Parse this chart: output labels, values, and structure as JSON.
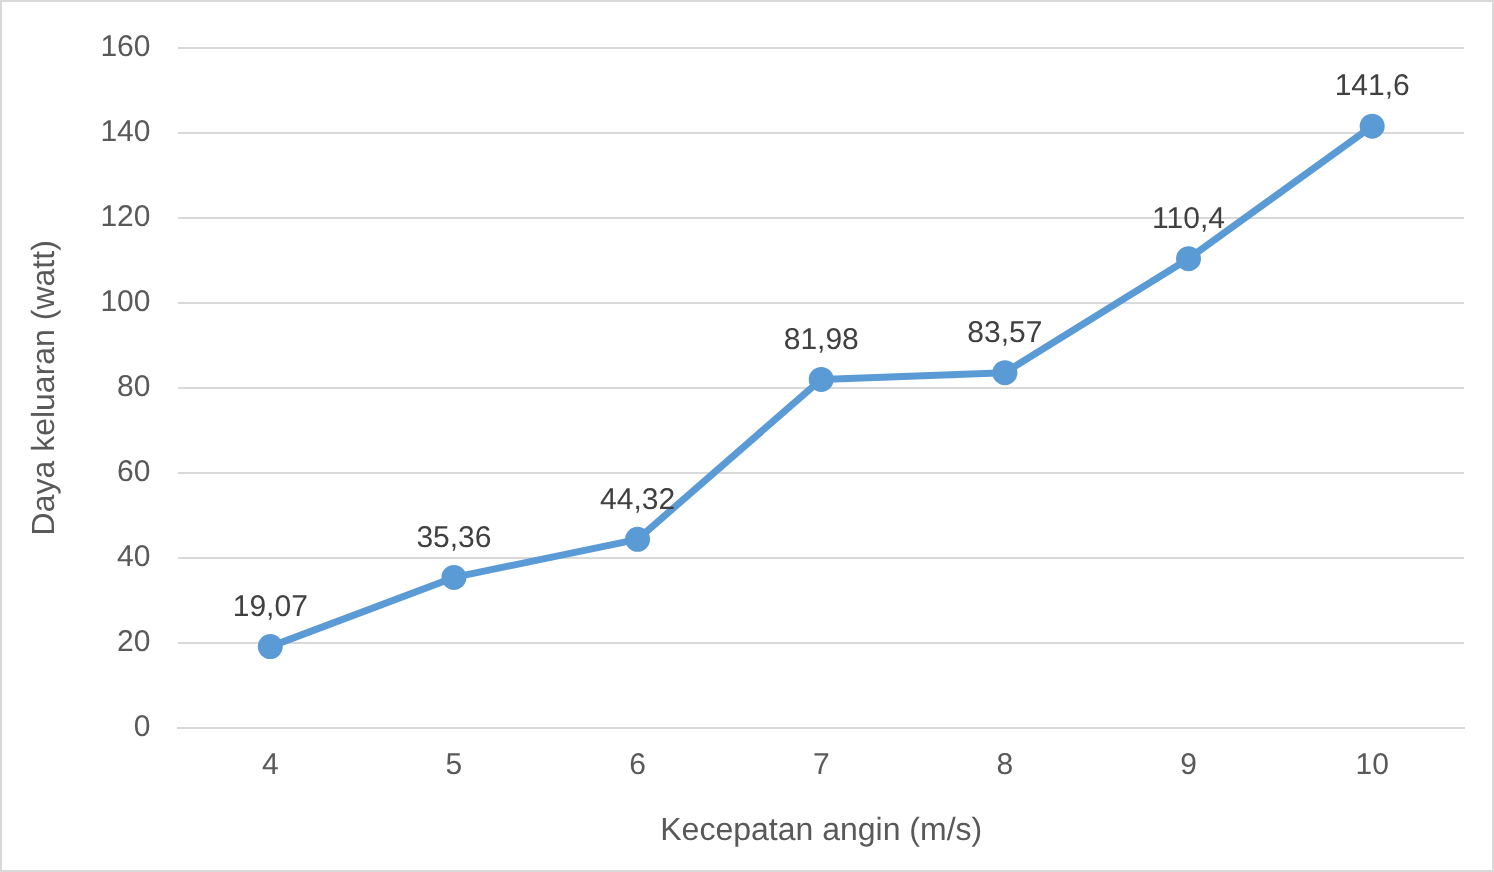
{
  "chart_data": {
    "type": "line",
    "xlabel": "Kecepatan angin (m/s)",
    "ylabel": "Daya keluaran (watt)",
    "categories": [
      "4",
      "5",
      "6",
      "7",
      "8",
      "9",
      "10"
    ],
    "series": [
      {
        "color": "#5b9bd5",
        "values": [
          19.07,
          35.36,
          44.32,
          81.98,
          83.57,
          110.4,
          141.6
        ],
        "value_labels": [
          "19,07",
          "35,36",
          "44,32",
          "81,98",
          "83,57",
          "110,4",
          "141,6"
        ]
      }
    ],
    "ylim": [
      0,
      160
    ],
    "yticks": [
      0,
      20,
      40,
      60,
      80,
      100,
      120,
      140,
      160
    ],
    "grid": "y",
    "legend": false,
    "marker": "circle",
    "line_style": "solid"
  }
}
